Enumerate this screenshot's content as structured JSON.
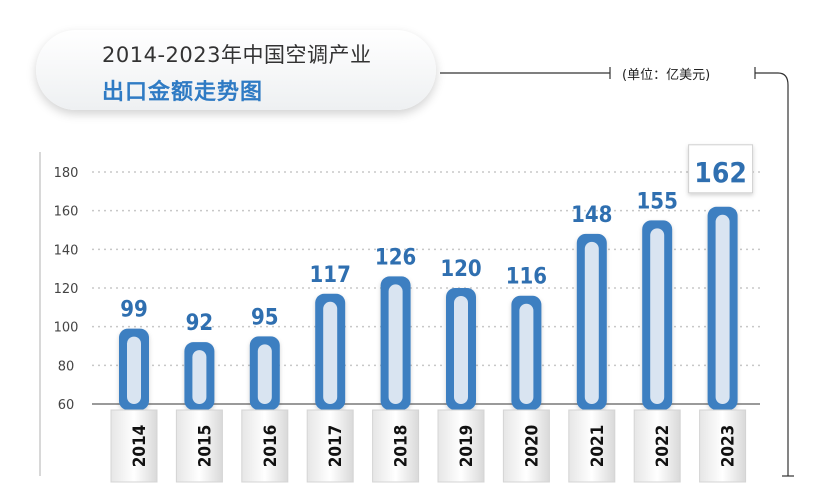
{
  "title": {
    "line1": "2014-2023年中国空调产业",
    "line2": "出口金额走势图"
  },
  "unit": "(单位：亿美元)",
  "chart_data": {
    "type": "bar",
    "title": "2014-2023年中国空调产业出口金额走势图",
    "ylabel": "(单位：亿美元)",
    "categories": [
      "2014",
      "2015",
      "2016",
      "2017",
      "2018",
      "2019",
      "2020",
      "2021",
      "2022",
      "2023"
    ],
    "values": [
      99,
      92,
      95,
      117,
      126,
      120,
      116,
      148,
      155,
      162
    ],
    "ylim": [
      60,
      180
    ],
    "yticks": [
      60,
      80,
      100,
      120,
      140,
      160,
      180
    ],
    "grid": true,
    "highlight_last": true,
    "colors": {
      "bar": "#3d7fc1",
      "bar_inner": "#d9e4f1",
      "label": "#2f6fb0",
      "grid": "#c8c8c8"
    }
  }
}
